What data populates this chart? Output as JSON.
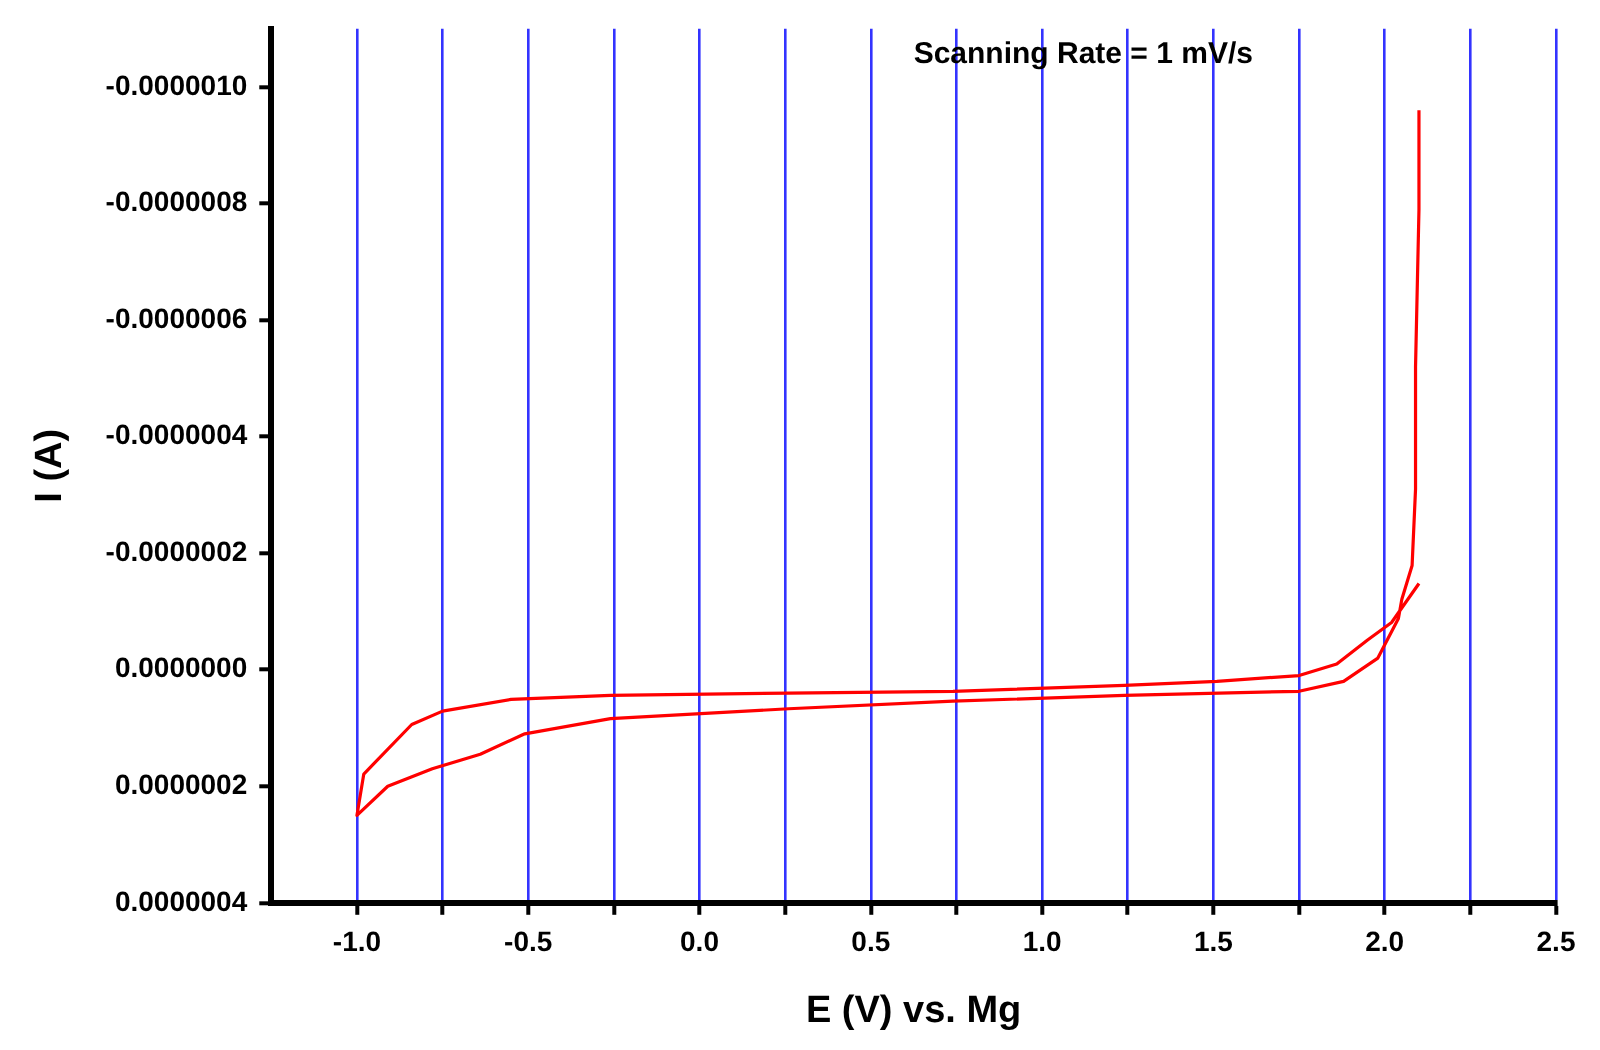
{
  "chart_data": {
    "type": "line",
    "xlabel": "E (V) vs. Mg",
    "ylabel": "I (A)",
    "annotations": [
      "Scanning Rate = 1 mV/s"
    ],
    "xlim": [
      -1.25,
      2.5
    ],
    "ylim": [
      4e-07,
      -1.1e-06
    ],
    "xticks": [
      {
        "value": -1.0,
        "label": "-1.0"
      },
      {
        "value": -0.75,
        "label": null
      },
      {
        "value": -0.5,
        "label": "-0.5"
      },
      {
        "value": -0.25,
        "label": null
      },
      {
        "value": 0,
        "label": "0.0"
      },
      {
        "value": 0.25,
        "label": null
      },
      {
        "value": 0.5,
        "label": "0.5"
      },
      {
        "value": 0.75,
        "label": null
      },
      {
        "value": 1.0,
        "label": "1.0"
      },
      {
        "value": 1.25,
        "label": null
      },
      {
        "value": 1.5,
        "label": "1.5"
      },
      {
        "value": 1.75,
        "label": null
      },
      {
        "value": 2.0,
        "label": "2.0"
      },
      {
        "value": 2.25,
        "label": null
      },
      {
        "value": 2.5,
        "label": "2.5"
      }
    ],
    "yticks": [
      {
        "value": -1e-06,
        "label": "-0.0000010"
      },
      {
        "value": -8e-07,
        "label": "-0.0000008"
      },
      {
        "value": -6e-07,
        "label": "-0.0000006"
      },
      {
        "value": -4e-07,
        "label": "-0.0000004"
      },
      {
        "value": -2e-07,
        "label": "-0.0000002"
      },
      {
        "value": 0,
        "label": "0.0000000"
      },
      {
        "value": 2e-07,
        "label": "0.0000002"
      },
      {
        "value": 4e-07,
        "label": "0.0000004"
      }
    ],
    "grid": "x",
    "marker": "none",
    "line_style": "solid",
    "legend": false,
    "series": [
      {
        "color": "#ff0000",
        "x": [
          2.1,
          2.02,
          1.95,
          1.86,
          1.75,
          1.51,
          1.24,
          0.74,
          0.26,
          -0.26,
          -0.55,
          -0.75,
          -0.84,
          -0.98,
          -1.0,
          -0.91,
          -0.78,
          -0.64,
          -0.51,
          -0.26,
          0.26,
          0.74,
          1.24,
          1.75,
          1.88,
          1.98,
          2.04,
          2.05,
          2.08,
          2.09,
          2.09,
          2.1,
          2.1
        ],
        "values": [
          -1.48e-07,
          -8.1e-08,
          -5.1e-08,
          -1e-08,
          1e-08,
          2e-08,
          2.7e-08,
          3.7e-08,
          4e-08,
          4.4e-08,
          5.1e-08,
          7.1e-08,
          9.4e-08,
          1.79e-07,
          2.5e-07,
          2e-07,
          1.7e-07,
          1.45e-07,
          1.1e-07,
          8.4e-08,
          6.7e-08,
          5.4e-08,
          4.4e-08,
          3.7e-08,
          2e-08,
          -2e-08,
          -8.8e-08,
          -1.21e-07,
          -1.79e-07,
          -3.1e-07,
          -5.2e-07,
          -7.9e-07,
          -9.6e-07
        ]
      }
    ]
  }
}
